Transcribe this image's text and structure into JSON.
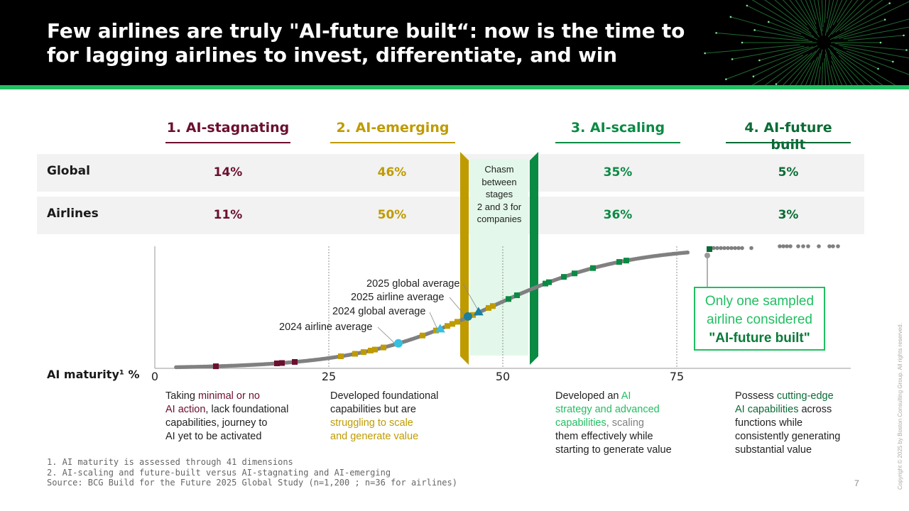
{
  "header": {
    "title_line1": "Few airlines are truly \"AI-future built“: now is the time to",
    "title_line2": "for lagging airlines to invest, differentiate, and win",
    "accent_color": "#21bf61"
  },
  "stages": [
    {
      "label": "1. AI-stagnating",
      "color": "#6b0f2e",
      "global": "14%",
      "airlines": "11%"
    },
    {
      "label": "2. AI-emerging",
      "color": "#bf9b00",
      "global": "46%",
      "airlines": "50%"
    },
    {
      "label": "3. AI-scaling",
      "color": "#0b8a44",
      "global": "35%",
      "airlines": "36%"
    },
    {
      "label": "4. AI-future built",
      "color": "#0b6b36",
      "global": "5%",
      "airlines": "3%"
    }
  ],
  "rows": {
    "global": "Global",
    "airlines": "Airlines"
  },
  "chasm": {
    "lines": [
      "Chasm",
      "between",
      "stages",
      "2 and 3 for",
      "companies"
    ]
  },
  "chart_data": {
    "type": "scatter",
    "xlabel": "AI maturity¹ %",
    "x_ticks": [
      "0",
      "25",
      "50",
      "75"
    ],
    "xlim": [
      0,
      100
    ],
    "annotations": {
      "global_2025": "2025 global average",
      "airline_2025": "2025 airline average",
      "global_2024": "2024 global average",
      "airline_2024": "2024 airline average"
    },
    "averages": {
      "airline_2024": 35,
      "global_2024": 41,
      "airline_2025": 45,
      "global_2025": 46
    },
    "callout": {
      "line1": "Only one sampled",
      "line2": "airline considered",
      "line3": "\"AI-future built\""
    },
    "series_colors": {
      "companies": "#808080",
      "stagnating_airlines": "#6b0f2e",
      "emerging_airlines": "#bf9b00",
      "scaling_airlines": "#0b8a44",
      "future_built_airline": "#0b6b36",
      "avg_2024": "#35c0e0",
      "avg_2025": "#1a7fa0"
    }
  },
  "descriptions": {
    "d1": {
      "p1": "Taking ",
      "h1": "minimal or no",
      "h2": "AI action",
      "p2": ", lack foundational",
      "p3": "capabilities, journey to",
      "p4": "AI yet to be activated"
    },
    "d2": {
      "p1": "Developed foundational",
      "p2": "capabilities but are",
      "h1": "struggling to scale",
      "h2": "and generate value"
    },
    "d3": {
      "p1": "Developed an ",
      "h1": "AI",
      "h2": "strategy and advanced",
      "h3": "capabilities",
      "g1": ", scaling",
      "p2": "them effectively while",
      "p3": "starting to generate value"
    },
    "d4": {
      "p1": "Possess ",
      "h1": "cutting-edge",
      "h2": "AI capabilities",
      "p2": " across",
      "p3": "functions while",
      "p4": "consistently generating",
      "p5": "substantial value"
    }
  },
  "footnotes": {
    "f1": "1. AI maturity is assessed through 41 dimensions",
    "f2": "2. AI-scaling and future-built versus AI-stagnating and AI-emerging",
    "f3": "Source: BCG Build for the Future 2025 Global Study (n=1,200 ; n=36 for airlines)"
  },
  "page_number": "7",
  "copyright": "Copyright © 2025 by Boston Consulting Group. All rights reserved."
}
